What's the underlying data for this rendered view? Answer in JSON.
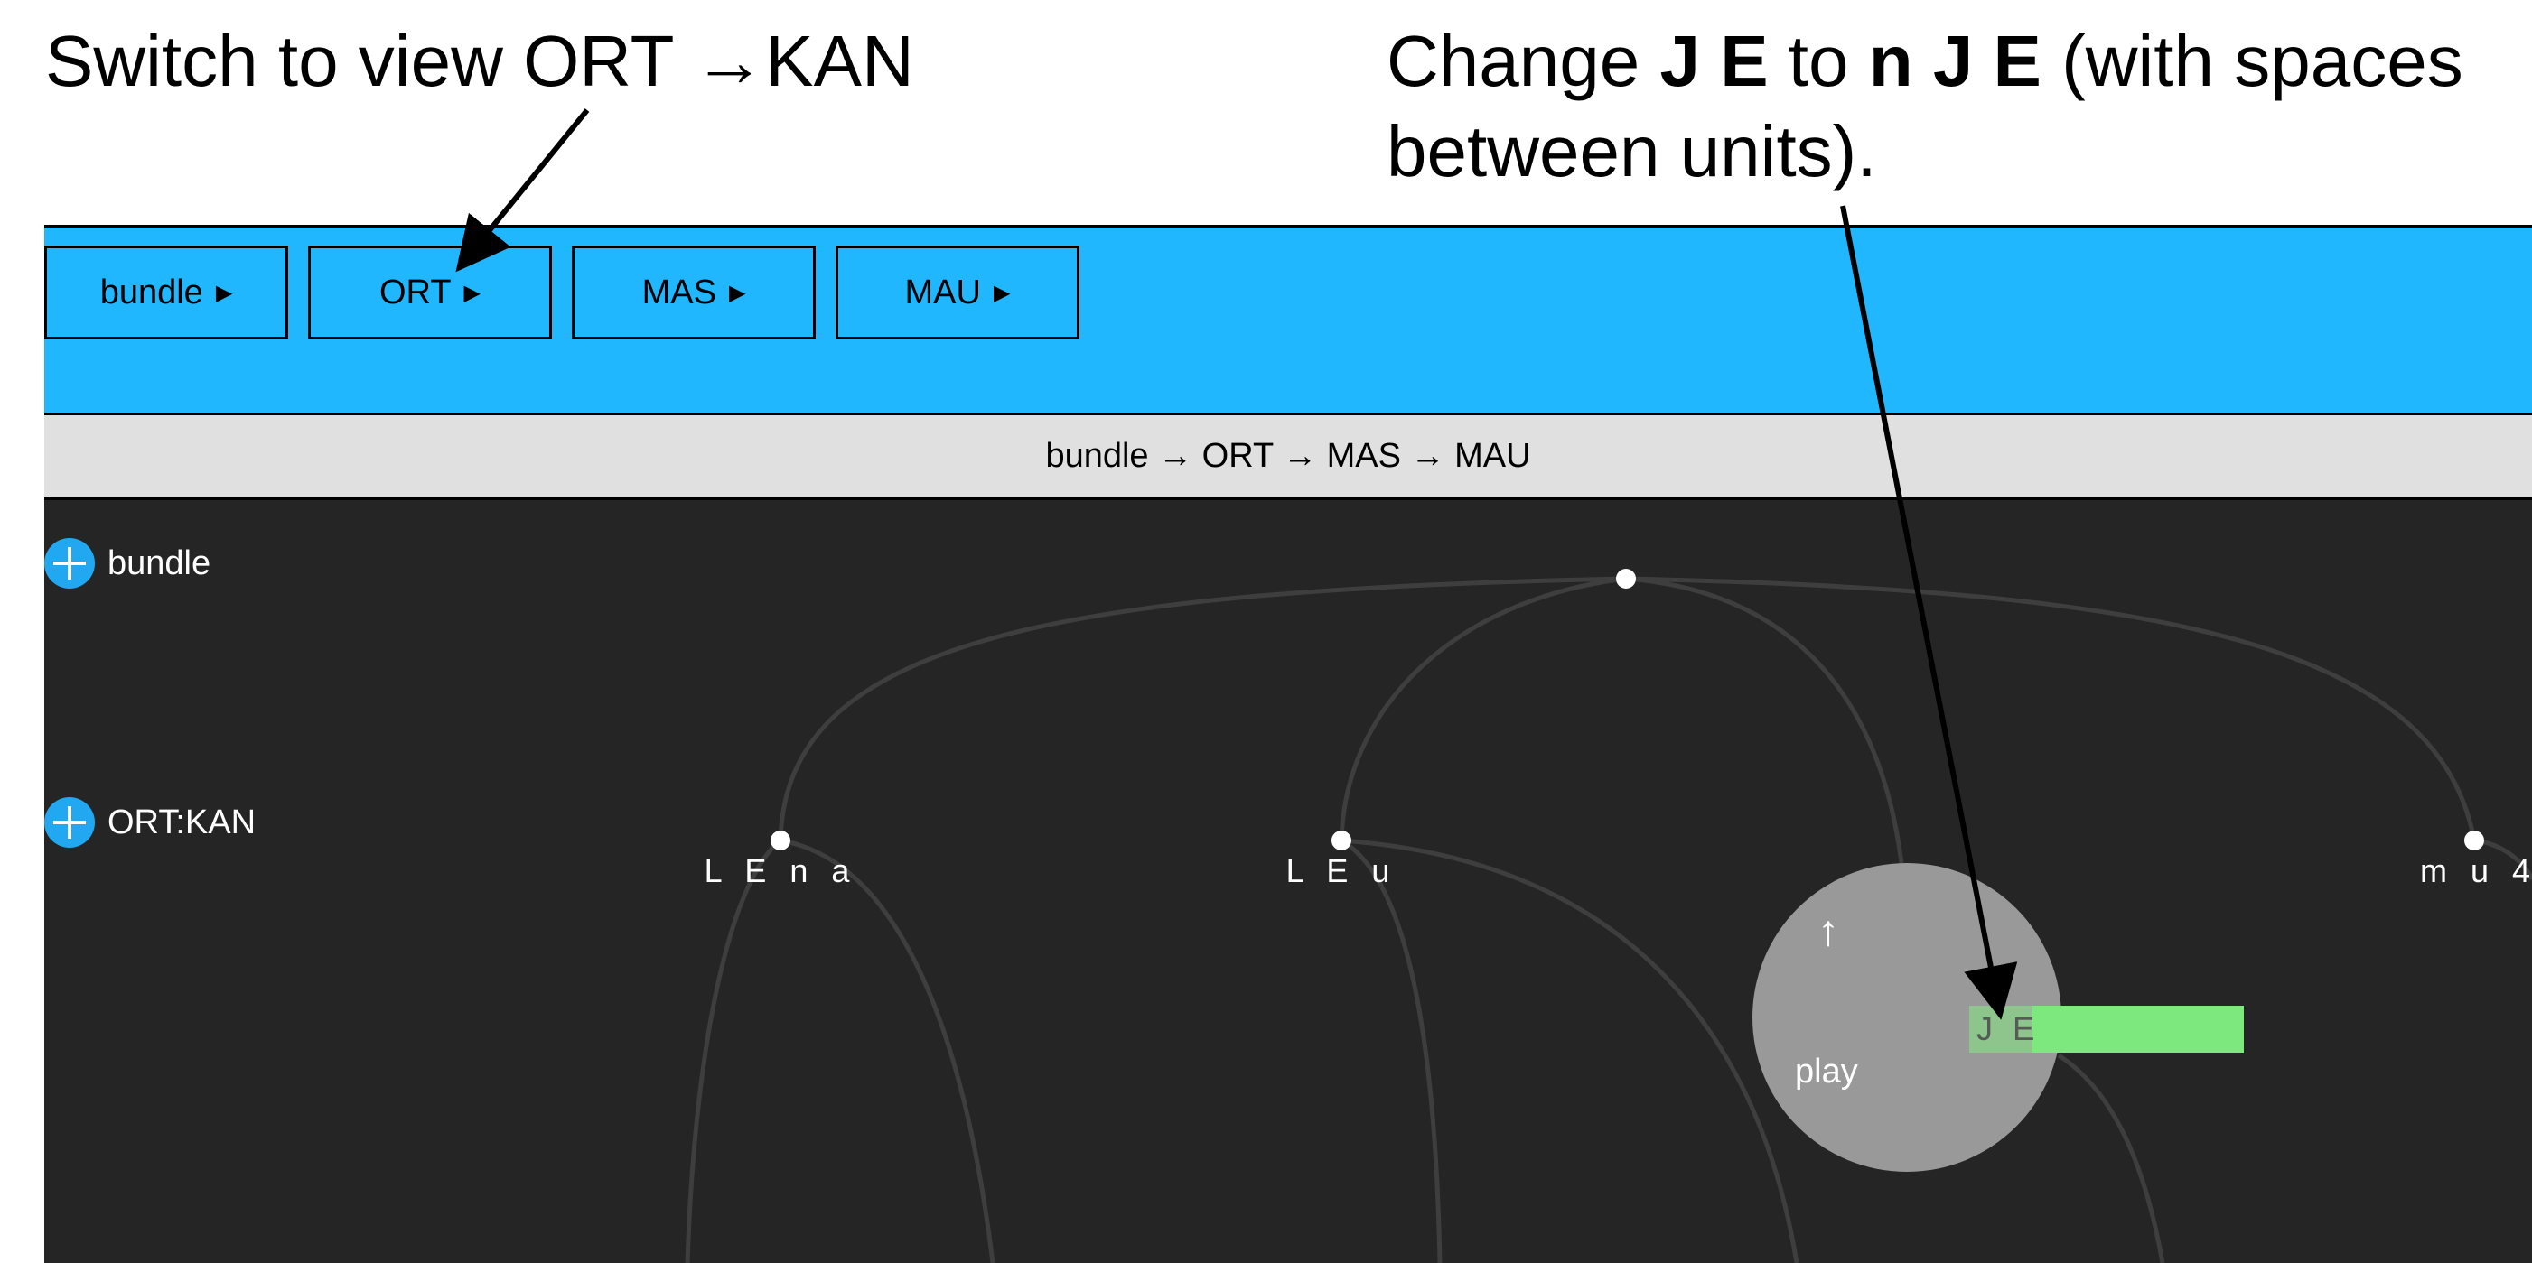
{
  "instructions": {
    "left": "Switch to view ORT →KAN",
    "right_prefix": "Change ",
    "right_from": "J E",
    "right_mid": " to ",
    "right_to": "n J E",
    "right_suffix": " (with spaces between units)."
  },
  "toolbar": {
    "buttons": [
      {
        "label": "bundle"
      },
      {
        "label": "ORT"
      },
      {
        "label": "MAS"
      },
      {
        "label": "MAU"
      }
    ]
  },
  "breadcrumb": "bundle → ORT → MAS → MAU",
  "tiers": {
    "bundle": "bundle",
    "ortkan": "ORT:KAN"
  },
  "nodes": {
    "lena": "L E n a",
    "leu": "L E u",
    "mu4": "m u 4"
  },
  "editor": {
    "up_arrow": "↑",
    "play": "play",
    "value": "J E"
  },
  "colors": {
    "toolbar": "#21b7ff",
    "canvas": "#252525",
    "edit_field": "#7de87d",
    "plus": "#22a8f0"
  }
}
